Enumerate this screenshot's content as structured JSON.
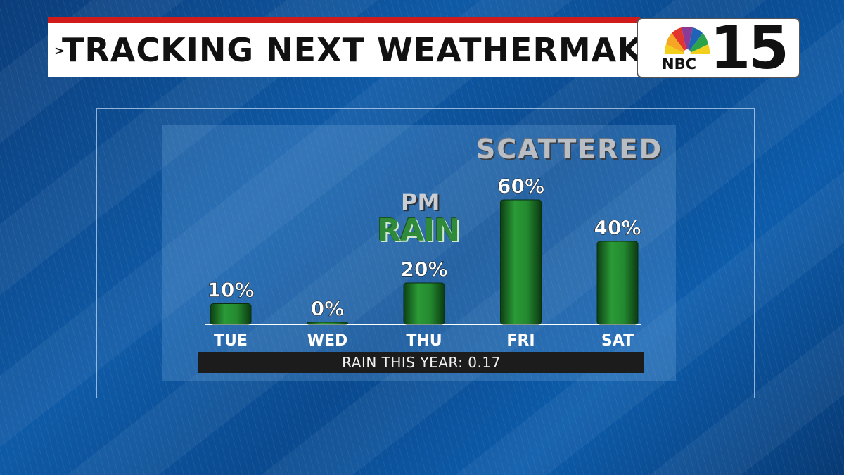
{
  "header": {
    "title": "TRACKING NEXT WEATHERMAKER",
    "caret": ">",
    "logo_network": "NBC",
    "logo_channel": "15"
  },
  "annotations": {
    "scattered": "SCATTERED",
    "pm": "PM",
    "rain": "RAIN"
  },
  "footer": {
    "text": "RAIN THIS YEAR: 0.17"
  },
  "chart_data": {
    "type": "bar",
    "categories": [
      "TUE",
      "WED",
      "THU",
      "FRI",
      "SAT"
    ],
    "values": [
      10,
      0,
      20,
      60,
      40
    ],
    "value_labels": [
      "10%",
      "0%",
      "20%",
      "60%",
      "40%"
    ],
    "ylim": [
      0,
      60
    ],
    "bar_color": "#1f7a2a",
    "grid": false,
    "legend": "none"
  },
  "colors": {
    "header_accent": "#d11a1a",
    "bar": "#1f7a2a"
  }
}
